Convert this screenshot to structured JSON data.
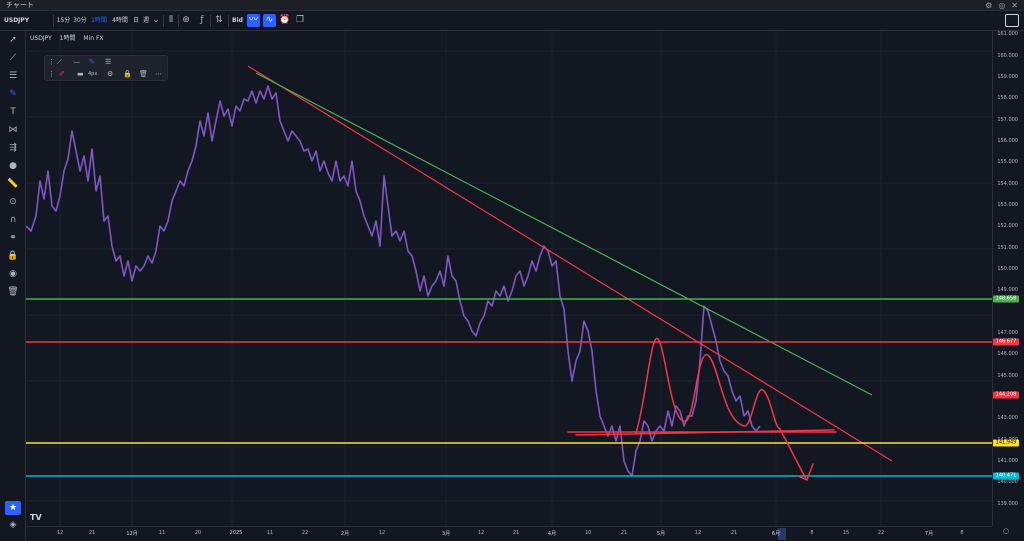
{
  "window": {
    "title": "チャート",
    "controls": [
      "⚙",
      "◎",
      "✕"
    ]
  },
  "toolbar": {
    "symbol": "USDJPY",
    "intervals": [
      "15分",
      "30分",
      "1時間",
      "4時間",
      "日",
      "週"
    ],
    "active_interval": "1時間",
    "bid_label": "Bid"
  },
  "legend": {
    "symbol": "USDJPY",
    "interval": "1時間",
    "source": "Min FX"
  },
  "drawing_toolbar": {
    "width_label": "4px"
  },
  "y_axis": {
    "ticks": [
      "161.000",
      "160.000",
      "159.000",
      "158.000",
      "157.000",
      "156.000",
      "155.000",
      "154.000",
      "153.000",
      "152.000",
      "151.000",
      "150.000",
      "149.000",
      "147.000",
      "146.000",
      "145.000",
      "143.000",
      "142.000",
      "141.000",
      "140.000",
      "139.000"
    ],
    "price_labels": [
      {
        "value": "148.658",
        "color": "#4caf50"
      },
      {
        "value": "146.677",
        "color": "#f23645"
      },
      {
        "value": "144.208",
        "color": "#f23645"
      },
      {
        "value": "141.949",
        "color": "#fbe02b",
        "text_color": "#131722"
      },
      {
        "value": "140.471",
        "color": "#00bcd4"
      }
    ]
  },
  "x_axis": {
    "ticks": [
      "12",
      "21",
      "12月",
      "11",
      "20",
      "2025",
      "11",
      "22",
      "2月",
      "12",
      "3月",
      "12",
      "21",
      "4月",
      "10",
      "21",
      "5月",
      "12",
      "21",
      "6月",
      "8",
      "15",
      "22",
      "7月",
      "8"
    ]
  },
  "tvlogo": "TV",
  "colors": {
    "background": "#131722",
    "candles": "#7e57c2",
    "green_line": "#4caf50",
    "red_line": "#f23645",
    "yellow_line": "#fbe02b",
    "cyan_line": "#00bcd4"
  }
}
